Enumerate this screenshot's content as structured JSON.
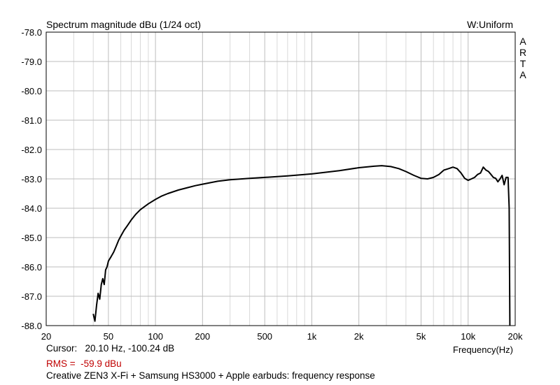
{
  "chart_data": {
    "type": "line",
    "title": "Spectrum magnitude dBu (1/24 oct)",
    "window_label": "W:Uniform",
    "watermark": "ARTA",
    "xlabel": "Frequency(Hz)",
    "x_scale": "log",
    "xlim": [
      20,
      20000
    ],
    "ylim": [
      -88.0,
      -78.0
    ],
    "grid": true,
    "x_tick_labels": [
      "20",
      "50",
      "100",
      "200",
      "500",
      "1k",
      "2k",
      "5k",
      "10k",
      "20k"
    ],
    "y_tick_labels": [
      "-78.0",
      "-79.0",
      "-80.0",
      "-81.0",
      "-82.0",
      "-83.0",
      "-84.0",
      "-85.0",
      "-86.0",
      "-87.0",
      "-88.0"
    ],
    "series": [
      {
        "color": "#000000",
        "x": [
          40,
          41,
          42,
          43,
          44,
          45,
          46,
          47,
          48,
          49,
          50,
          52,
          54,
          56,
          58,
          60,
          63,
          66,
          70,
          75,
          80,
          90,
          100,
          110,
          120,
          140,
          160,
          180,
          200,
          250,
          300,
          400,
          500,
          700,
          1000,
          1500,
          2000,
          2500,
          2800,
          3200,
          3600,
          4000,
          4500,
          5000,
          5500,
          6000,
          6500,
          7000,
          7500,
          8000,
          8500,
          9000,
          9500,
          10000,
          10500,
          11000,
          11500,
          12000,
          12500,
          13000,
          13500,
          14000,
          14500,
          15000,
          15500,
          16000,
          16500,
          17000,
          17500,
          18000,
          18300,
          18500
        ],
        "y": [
          -87.6,
          -87.85,
          -87.3,
          -86.9,
          -87.1,
          -86.6,
          -86.4,
          -86.6,
          -86.1,
          -86.0,
          -85.8,
          -85.65,
          -85.5,
          -85.3,
          -85.1,
          -84.95,
          -84.75,
          -84.6,
          -84.4,
          -84.2,
          -84.05,
          -83.85,
          -83.7,
          -83.58,
          -83.5,
          -83.38,
          -83.3,
          -83.23,
          -83.18,
          -83.08,
          -83.03,
          -82.98,
          -82.95,
          -82.9,
          -82.83,
          -82.72,
          -82.62,
          -82.57,
          -82.55,
          -82.58,
          -82.65,
          -82.75,
          -82.88,
          -82.98,
          -83.0,
          -82.95,
          -82.85,
          -82.7,
          -82.65,
          -82.6,
          -82.65,
          -82.8,
          -82.98,
          -83.05,
          -83.0,
          -82.95,
          -82.85,
          -82.8,
          -82.6,
          -82.7,
          -82.75,
          -82.85,
          -82.95,
          -82.98,
          -83.1,
          -83.0,
          -82.88,
          -83.2,
          -82.95,
          -82.95,
          -84.0,
          -88.0
        ]
      }
    ]
  },
  "info": {
    "cursor": "Cursor:   20.10 Hz, -100.24 dB",
    "rms": "RMS =  -59.9 dBu",
    "caption": "Creative ZEN3 X-Fi + Samsung HS3000 + Apple earbuds: frequency response"
  }
}
